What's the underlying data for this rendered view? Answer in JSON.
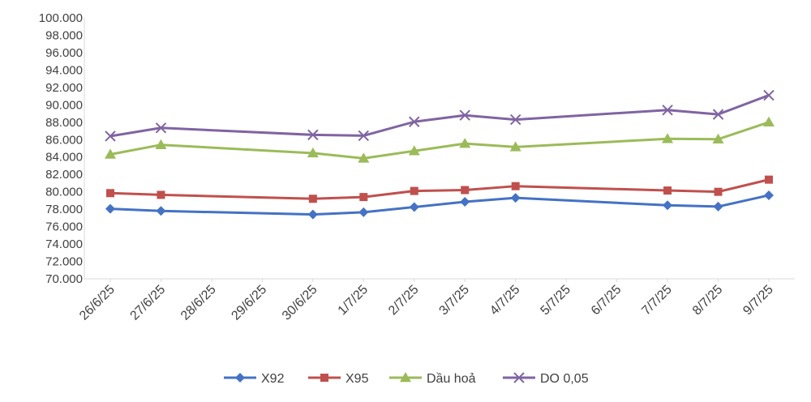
{
  "chart_data": {
    "type": "line",
    "title": "",
    "xlabel": "",
    "ylabel": "",
    "categories": [
      "26/6/25",
      "27/6/25",
      "28/6/25",
      "29/6/25",
      "30/6/25",
      "1/7/25",
      "2/7/25",
      "3/7/25",
      "4/7/25",
      "5/7/25",
      "6/7/25",
      "7/7/25",
      "8/7/25",
      "9/7/25"
    ],
    "ylim": [
      70000,
      100000
    ],
    "ytick_step": 2000,
    "yticks": [
      "70.000",
      "72.000",
      "74.000",
      "76.000",
      "78.000",
      "80.000",
      "82.000",
      "84.000",
      "86.000",
      "88.000",
      "90.000",
      "92.000",
      "94.000",
      "96.000",
      "98.000",
      "100.000"
    ],
    "grid": false,
    "legend_position": "bottom",
    "series": [
      {
        "name": "X92",
        "color": "#4472C4",
        "marker": "diamond",
        "values": [
          78050,
          77800,
          null,
          null,
          77400,
          77650,
          78250,
          78850,
          79300,
          null,
          null,
          78450,
          78300,
          79600
        ]
      },
      {
        "name": "X95",
        "color": "#C0504D",
        "marker": "square",
        "values": [
          79850,
          79650,
          null,
          null,
          79200,
          79400,
          80100,
          80200,
          80650,
          null,
          null,
          80150,
          80000,
          81400
        ]
      },
      {
        "name": "Dầu hoả",
        "color": "#9BBB59",
        "marker": "triangle",
        "values": [
          84300,
          85400,
          null,
          null,
          84450,
          83850,
          84700,
          85550,
          85150,
          null,
          null,
          86100,
          86050,
          88000
        ]
      },
      {
        "name": "DO 0,05",
        "color": "#8064A2",
        "marker": "x",
        "values": [
          86400,
          87350,
          null,
          null,
          86550,
          86450,
          88050,
          88800,
          88300,
          null,
          null,
          89400,
          88900,
          91100
        ]
      }
    ]
  }
}
